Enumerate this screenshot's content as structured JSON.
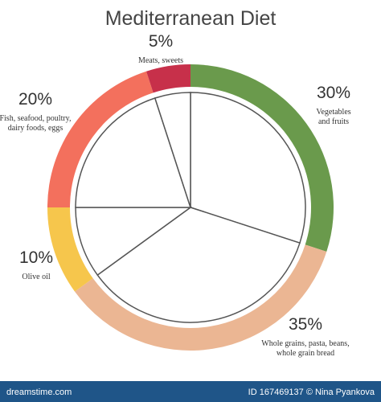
{
  "chart_data": {
    "type": "donut",
    "title": "Mediterranean Diet",
    "categories": [
      [
        "Vegetables",
        "and fruits"
      ],
      [
        "Whole grains, pasta, beans,",
        "whole grain bread"
      ],
      [
        "Olive oil"
      ],
      [
        "Fish, seafood, poultry,",
        "dairy foods, eggs"
      ],
      [
        "Meats, sweets"
      ]
    ],
    "values": [
      30,
      35,
      10,
      20,
      5
    ],
    "value_labels": [
      "30%",
      "35%",
      "10%",
      "20%",
      "5%"
    ],
    "colors": [
      "#6a9a4c",
      "#ebb693",
      "#f6c64c",
      "#f3705d",
      "#c7304a"
    ]
  },
  "footer": {
    "site": "dreamstime.com",
    "credit": "ID 167469137 © Nina Pyankova"
  }
}
